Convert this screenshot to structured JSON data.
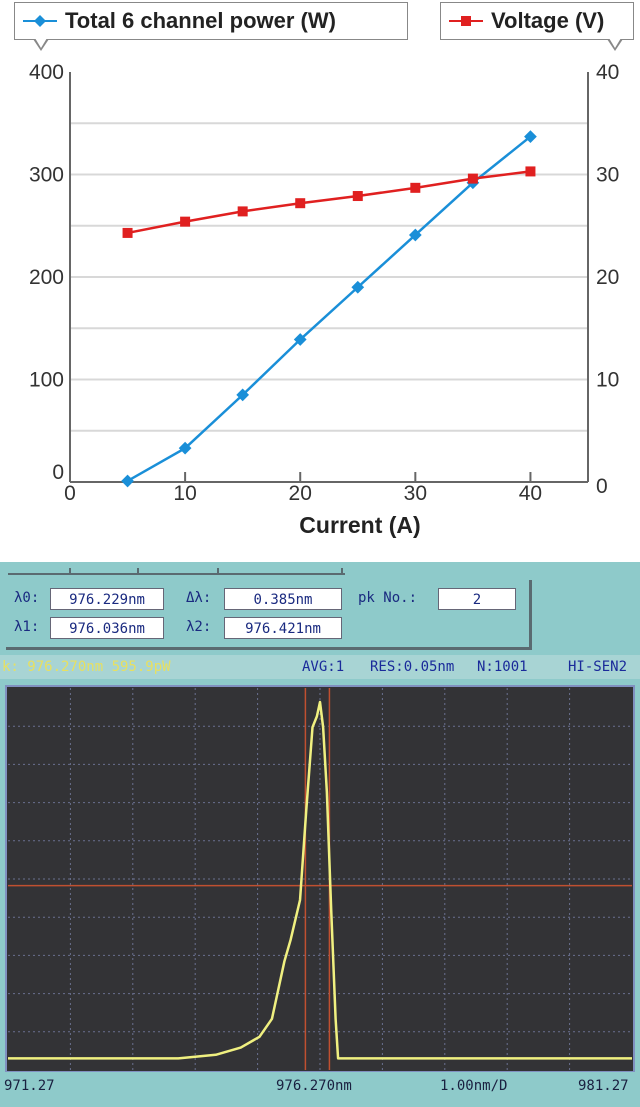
{
  "chart_data": [
    {
      "type": "line",
      "xlabel": "Current (A)",
      "x": [
        5,
        10,
        15,
        20,
        25,
        30,
        35,
        40
      ],
      "xlim": [
        0,
        45
      ],
      "xticks": [
        0,
        10,
        20,
        30,
        40
      ],
      "yticks_left": [
        0,
        100,
        200,
        300,
        400
      ],
      "yticks_right": [
        0,
        10,
        20,
        30,
        40
      ],
      "ylim_left": [
        0,
        400
      ],
      "ylim_right": [
        0,
        40
      ],
      "grid": "horizontal",
      "legend_placement": "top",
      "series": [
        {
          "name": "Total 6 channel power (W)",
          "axis": "left",
          "color": "#1a8fd8",
          "marker": "diamond",
          "values": [
            1,
            33,
            85,
            139,
            190,
            241,
            292,
            337
          ]
        },
        {
          "name": "Voltage (V)",
          "axis": "right",
          "color": "#e02020",
          "marker": "square",
          "values": [
            24.3,
            25.4,
            26.4,
            27.2,
            27.9,
            28.7,
            29.6,
            30.3
          ]
        }
      ]
    },
    {
      "type": "line",
      "xlim": [
        971.27,
        981.27
      ],
      "x_divisions": 10,
      "trace_color": "#f0f080",
      "marker_color": "#c05030",
      "x": [
        971.27,
        973.0,
        974.0,
        974.6,
        975.0,
        975.3,
        975.5,
        975.7,
        975.8,
        975.95,
        976.05,
        976.15,
        976.22,
        976.27,
        976.32,
        976.38,
        976.45,
        976.52,
        976.56,
        977.5,
        979.0,
        981.27
      ],
      "values": [
        0.01,
        0.01,
        0.01,
        0.02,
        0.04,
        0.07,
        0.12,
        0.28,
        0.34,
        0.45,
        0.7,
        0.93,
        0.96,
        1.0,
        0.93,
        0.75,
        0.42,
        0.12,
        0.01,
        0.01,
        0.01,
        0.01
      ],
      "half_max_level": 0.49,
      "cursor_lambda1": 976.036,
      "cursor_lambda2": 976.421
    }
  ],
  "top_chart": {
    "legend_power": "Total 6 channel power (W)",
    "legend_voltage": "Voltage (V)",
    "xlabel": "Current (A)"
  },
  "osa": {
    "lambda0_label": "λ0:",
    "lambda0_value": "976.229nm",
    "delta_lambda_label": "Δλ:",
    "delta_lambda_value": "0.385nm",
    "pk_no_label": "pk No.:",
    "pk_no_value": "2",
    "lambda1_label": "λ1:",
    "lambda1_value": "976.036nm",
    "lambda2_label": "λ2:",
    "lambda2_value": "976.421nm",
    "peak_readout": "k:  976.270nm 595.9pW",
    "avg": "AVG:1",
    "res": "RES:0.05nm",
    "n": "N:1001",
    "sens": "HI-SEN2",
    "x_start": "971.27",
    "x_center": "976.270nm",
    "x_scale": "1.00nm/D",
    "x_end": "981.27"
  }
}
